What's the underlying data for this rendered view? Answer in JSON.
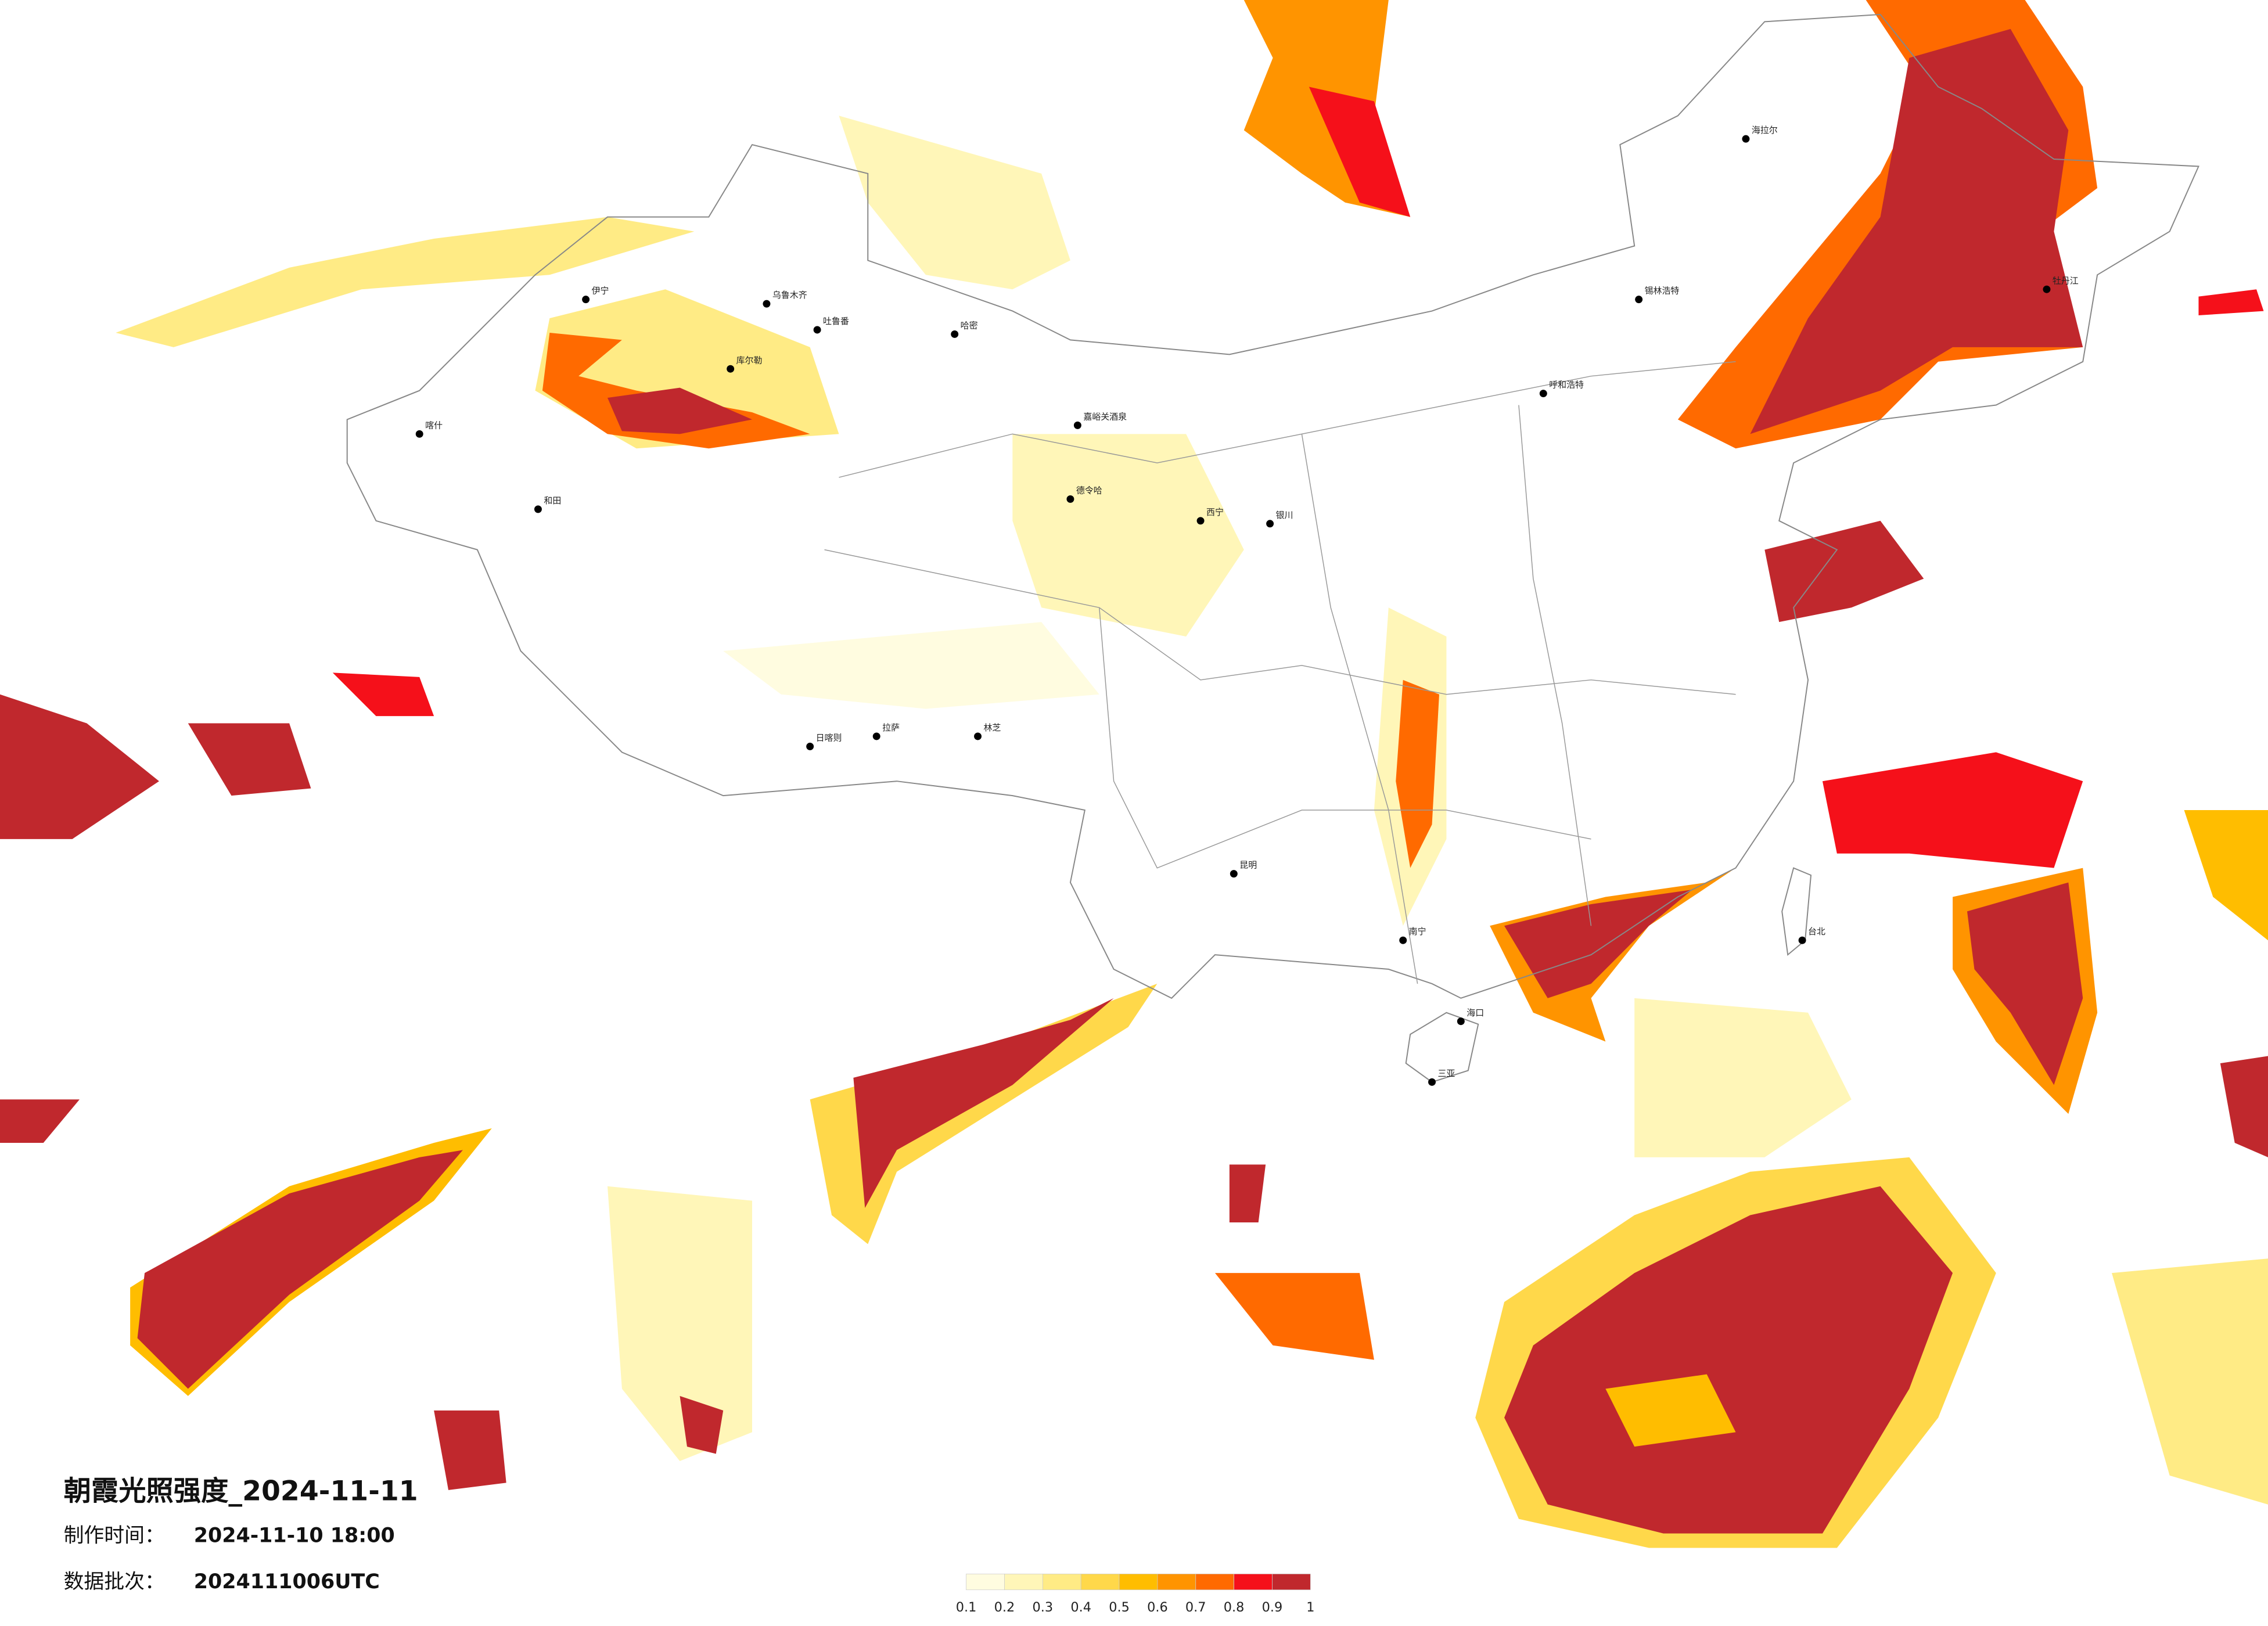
{
  "title": "朝霞光照强度_2024-11-11",
  "make_time": {
    "label": "制作时间：",
    "value": "2024-11-10 18:00"
  },
  "batch": {
    "label": "数据批次：",
    "value": "2024111006UTC"
  },
  "legend": {
    "ticks": [
      0.1,
      0.2,
      0.3,
      0.4,
      0.5,
      0.6,
      0.7,
      0.8,
      0.9,
      1
    ],
    "colors": [
      "#fffce0",
      "#fff6b8",
      "#ffeb85",
      "#ffd84a",
      "#ffbd00",
      "#ff9400",
      "#ff6a00",
      "#f5101a",
      "#c0282d"
    ]
  },
  "cities": [
    "伊宁",
    "乌鲁木齐",
    "吐鲁番",
    "哈密",
    "库尔勒",
    "喀什",
    "和田",
    "嘉峪关酒泉",
    "德令哈",
    "西宁",
    "银川",
    "拉萨",
    "日喀则",
    "林芝",
    "呼和浩特",
    "锡林浩特",
    "海拉尔",
    "牡丹江",
    "昆明",
    "南宁",
    "海口",
    "三亚",
    "台北"
  ]
}
